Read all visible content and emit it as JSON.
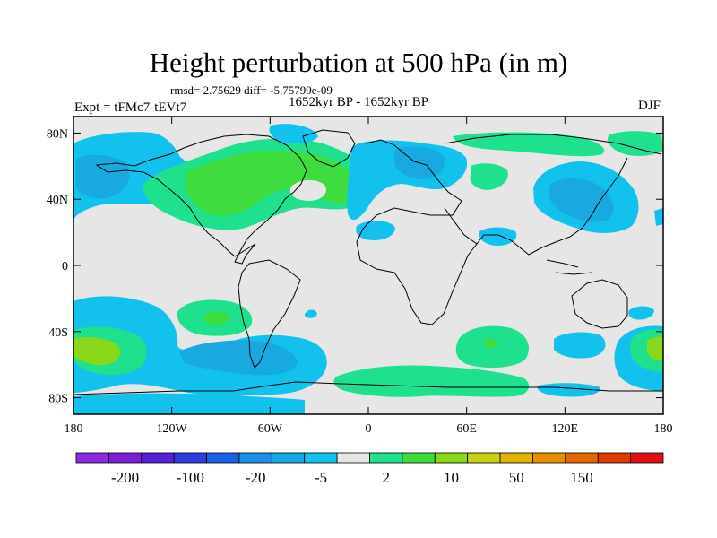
{
  "title": "Height perturbation at 500 hPa (in m)",
  "stats": "rmsd= 2.75629 diff= -5.75799e-09",
  "period": "1652kyr BP - 1652kyr BP",
  "experiment": "Expt = tFMc7-tEVt7",
  "season": "DJF",
  "axes": {
    "y_ticks": [
      {
        "label": "80N",
        "lat": 80
      },
      {
        "label": "40N",
        "lat": 40
      },
      {
        "label": "0",
        "lat": 0
      },
      {
        "label": "40S",
        "lat": -40
      },
      {
        "label": "80S",
        "lat": -80
      }
    ],
    "x_ticks": [
      {
        "label": "180",
        "lon": -180
      },
      {
        "label": "120W",
        "lon": -120
      },
      {
        "label": "60W",
        "lon": -60
      },
      {
        "label": "0",
        "lon": 0
      },
      {
        "label": "60E",
        "lon": 60
      },
      {
        "label": "120E",
        "lon": 120
      },
      {
        "label": "180",
        "lon": 180
      }
    ]
  },
  "colorbar": {
    "colors": [
      "#8a2be2",
      "#7a1fd6",
      "#5a20d8",
      "#2e3fe0",
      "#1a62e6",
      "#1e8fe6",
      "#18a9e0",
      "#12c2ec",
      "#e6e6e6",
      "#1fe08c",
      "#3edc3e",
      "#8ad81a",
      "#c8d014",
      "#e0b400",
      "#e69000",
      "#e46a00",
      "#e03c00",
      "#e01010"
    ],
    "labels": [
      "-200",
      "-100",
      "-20",
      "-5",
      "2",
      "10",
      "50",
      "150"
    ]
  },
  "colors": {
    "background": "#e6e6e6",
    "cyan": "#12c2ec",
    "light_blue": "#18a9e0",
    "blue": "#1e8fe6",
    "mint": "#1fe08c",
    "green": "#3edc3e",
    "yellowgreen": "#8ad81a",
    "yellow": "#c8d014"
  }
}
